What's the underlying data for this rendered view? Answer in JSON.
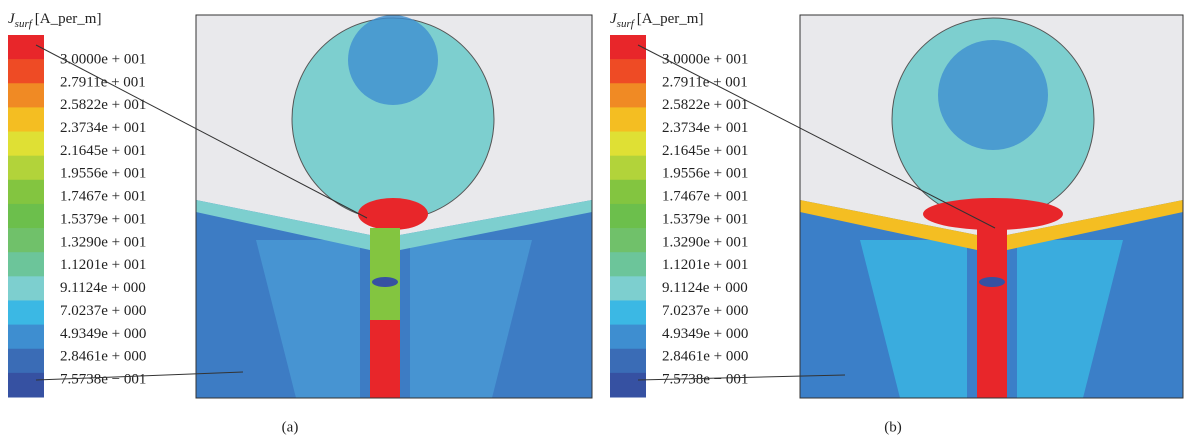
{
  "panels": [
    {
      "legend": {
        "title_symbol": "J",
        "title_subscript": "surf",
        "title_unit": "[A_per_m]",
        "labels": [
          "3.0000e + 001",
          "2.7911e + 001",
          "2.5822e + 001",
          "2.3734e + 001",
          "2.1645e + 001",
          "1.9556e + 001",
          "1.7467e + 001",
          "1.5379e + 001",
          "1.3290e + 001",
          "1.1201e + 001",
          "9.1124e + 000",
          "7.0237e + 000",
          "4.9349e + 000",
          "2.8461e + 000",
          "7.5738e − 001"
        ],
        "colors": [
          "#e8262a",
          "#ee4b25",
          "#f08a24",
          "#f4be22",
          "#dfe034",
          "#b2d33a",
          "#83c540",
          "#6cbf4c",
          "#70c16a",
          "#6cc59a",
          "#7dcfcf",
          "#3bb8e4",
          "#3e8ed0",
          "#3a6cb6",
          "#3651a2"
        ]
      },
      "caption": "(a)"
    },
    {
      "legend": {
        "title_symbol": "J",
        "title_subscript": "surf",
        "title_unit": "[A_per_m]",
        "labels": [
          "3.0000e + 001",
          "2.7911e + 001",
          "2.5822e + 001",
          "2.3734e + 001",
          "2.1645e + 001",
          "1.9556e + 001",
          "1.7467e + 001",
          "1.5379e + 001",
          "1.3290e + 001",
          "1.1201e + 001",
          "9.1124e + 000",
          "7.0237e + 000",
          "4.9349e + 000",
          "2.8461e + 000",
          "7.5738e − 001"
        ],
        "colors": [
          "#e8262a",
          "#ee4b25",
          "#f08a24",
          "#f4be22",
          "#dfe034",
          "#b2d33a",
          "#83c540",
          "#6cbf4c",
          "#70c16a",
          "#6cc59a",
          "#7dcfcf",
          "#3bb8e4",
          "#3e8ed0",
          "#3a6cb6",
          "#3651a2"
        ]
      },
      "caption": "(b)"
    }
  ]
}
